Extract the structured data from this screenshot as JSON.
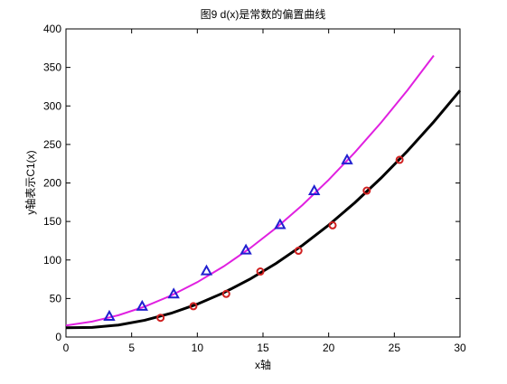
{
  "chart_data": {
    "type": "line",
    "title": "图9 d(x)是常数的偏置曲线",
    "x_label": "x轴",
    "y_label": "y轴表示C1(x)",
    "xlim": [
      0,
      30
    ],
    "xticks": [
      0,
      5,
      10,
      15,
      20,
      25,
      30
    ],
    "ylim": [
      0,
      400
    ],
    "yticks": [
      0,
      50,
      100,
      150,
      200,
      250,
      300,
      350,
      400
    ],
    "series": [
      {
        "color": "#e020e0",
        "marker": "none",
        "x": [
          0,
          2,
          4,
          6,
          8,
          10,
          12,
          14,
          16,
          18,
          20,
          22,
          24,
          26,
          28
        ],
        "values": [
          15,
          20.1,
          28.3,
          39.5,
          53.8,
          71.2,
          91.6,
          115.1,
          141.7,
          171.3,
          204,
          239.8,
          278.6,
          320.4,
          365.4
        ]
      },
      {
        "color": "#000000",
        "marker": "none",
        "x": [
          0,
          2,
          4,
          6,
          8,
          10,
          12,
          14,
          16,
          18,
          20,
          22,
          24,
          26,
          28,
          30
        ],
        "values": [
          12,
          12.4,
          15.6,
          21.8,
          30.8,
          42.7,
          57.4,
          75.1,
          95.6,
          119,
          145.3,
          174.5,
          206.6,
          241.5,
          279.3,
          320
        ]
      },
      {
        "color": "#2020d0",
        "marker": "triangle",
        "x": [
          3.3,
          5.8,
          8.2,
          10.7,
          13.7,
          16.3,
          18.9,
          21.4
        ],
        "values": [
          27,
          40,
          56,
          86,
          113,
          146,
          190,
          230
        ]
      },
      {
        "color": "#d02020",
        "marker": "circle",
        "x": [
          7.2,
          9.7,
          12.2,
          14.8,
          17.7,
          20.3,
          22.9,
          25.4
        ],
        "values": [
          25,
          40,
          56,
          85,
          112,
          145,
          190,
          230
        ]
      }
    ]
  }
}
